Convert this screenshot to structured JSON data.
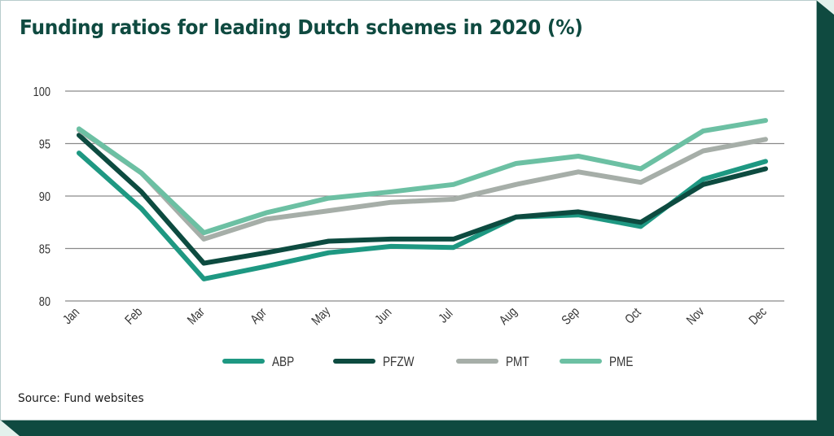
{
  "title": "Funding ratios for leading Dutch schemes in 2020 (%)",
  "source": "Source: Fund websites",
  "colors": {
    "frame": "#0f4a40",
    "title": "#0f4a40",
    "grid": "#8a8a8a"
  },
  "chart_data": {
    "type": "line",
    "title": "Funding ratios for leading Dutch schemes in 2020 (%)",
    "xlabel": "",
    "ylabel": "",
    "categories": [
      "Jan",
      "Feb",
      "Mar",
      "Apr",
      "May",
      "Jun",
      "Jul",
      "Aug",
      "Sep",
      "Oct",
      "Nov",
      "Dec"
    ],
    "ylim": [
      80,
      100
    ],
    "yticks": [
      80,
      85,
      90,
      95,
      100
    ],
    "ytick_labels": [
      "80",
      "85",
      "90",
      "95",
      "100"
    ],
    "grid": true,
    "legend_position": "bottom",
    "series": [
      {
        "name": "ABP",
        "color": "#1e9882",
        "values": [
          94.1,
          88.8,
          82.1,
          83.3,
          84.6,
          85.2,
          85.1,
          88.0,
          88.2,
          87.1,
          91.6,
          93.3
        ]
      },
      {
        "name": "PFZW",
        "color": "#0d4b40",
        "values": [
          95.8,
          90.4,
          83.6,
          84.6,
          85.7,
          85.9,
          85.9,
          88.0,
          88.5,
          87.5,
          91.1,
          92.6
        ]
      },
      {
        "name": "PMT",
        "color": "#a6aea8",
        "values": [
          96.3,
          92.2,
          85.9,
          87.8,
          88.6,
          89.4,
          89.7,
          91.1,
          92.3,
          91.3,
          94.3,
          95.4
        ]
      },
      {
        "name": "PME",
        "color": "#6cc0a3",
        "values": [
          96.4,
          92.2,
          86.5,
          88.4,
          89.8,
          90.4,
          91.1,
          93.1,
          93.8,
          92.6,
          96.2,
          97.2
        ]
      }
    ]
  }
}
